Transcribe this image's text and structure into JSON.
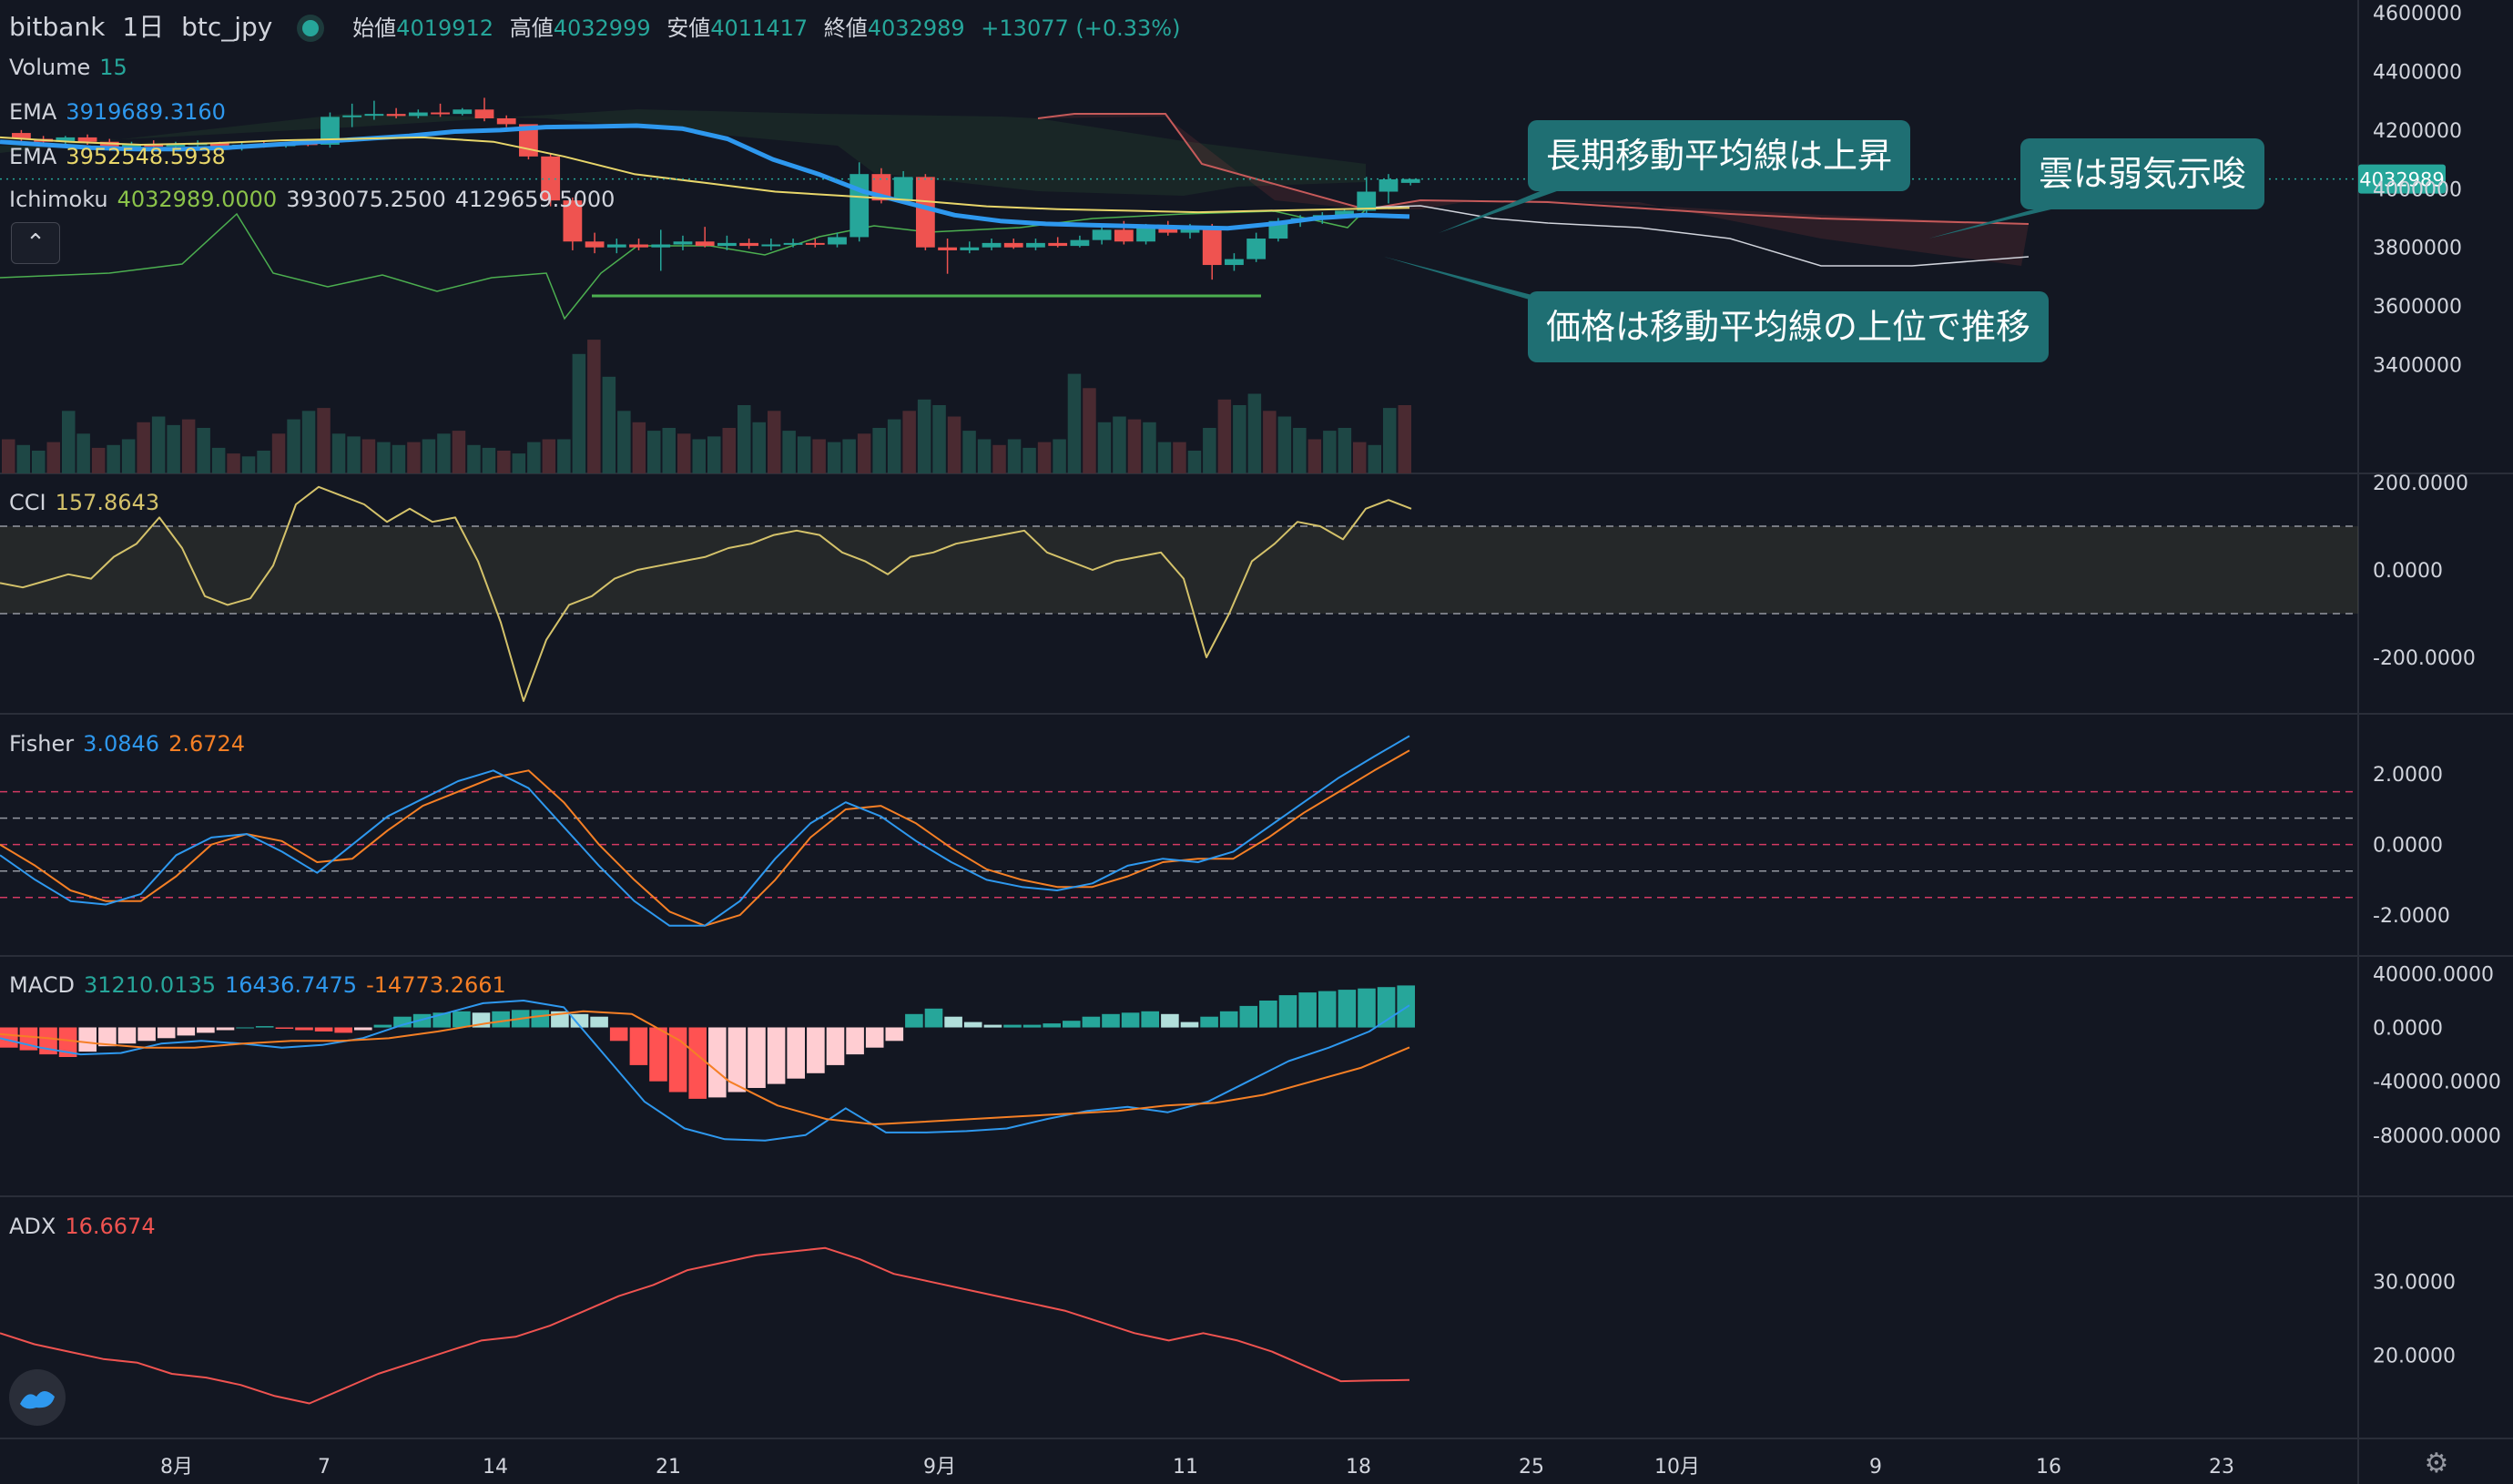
{
  "header": {
    "exchange": "bitbank",
    "interval": "1日",
    "symbol": "btc_jpy",
    "open_label": "始値",
    "open": "4019912",
    "high_label": "高値",
    "high": "4032999",
    "low_label": "安値",
    "low": "4011417",
    "close_label": "終値",
    "close": "4032989",
    "change": "+13077 (+0.33%)"
  },
  "legend": {
    "volume_label": "Volume",
    "volume_value": "15",
    "ema1_label": "EMA",
    "ema1_value": "3919689.3160",
    "ema2_label": "EMA",
    "ema2_value": "3952548.5938",
    "ichimoku_label": "Ichimoku",
    "ichimoku_v1": "4032989.0000",
    "ichimoku_v2": "3930075.2500",
    "ichimoku_v3": "4129659.5000"
  },
  "callouts": {
    "c1": "長期移動平均線は上昇",
    "c2": "雲は弱気示唆",
    "c3": "価格は移動平均線の上位で推移"
  },
  "price_tag": "4032989",
  "colors": {
    "background": "#131722",
    "up": "#26a69a",
    "down": "#ef5350",
    "ema1": "#2e98ee",
    "ema2": "#e8d66a",
    "cci": "#d4c26a",
    "fisher": "#2e98ee",
    "fisher_trigger": "#f57f25",
    "macd": "#2e98ee",
    "signal": "#f57f25",
    "adx": "#ef5350",
    "callout": "#1f6f73"
  },
  "icons": [
    "chevron-up-icon",
    "tradingview-logo-icon",
    "settings-gear-icon"
  ],
  "chart_data": [
    {
      "type": "candlestick",
      "name": "price",
      "ylim": [
        3200000,
        4600000
      ],
      "yticks": [
        "4600000",
        "4400000",
        "4200000",
        "4000000",
        "3800000",
        "3600000",
        "3400000"
      ],
      "ohlc": [
        [
          4190000,
          4200000,
          4150000,
          4170000
        ],
        [
          4170000,
          4180000,
          4150000,
          4160000
        ],
        [
          4160000,
          4180000,
          4140000,
          4175000
        ],
        [
          4175000,
          4185000,
          4150000,
          4160000
        ],
        [
          4160000,
          4170000,
          4130000,
          4140000
        ],
        [
          4140000,
          4160000,
          4130000,
          4150000
        ],
        [
          4150000,
          4165000,
          4140000,
          4145000
        ],
        [
          4145000,
          4160000,
          4135000,
          4150000
        ],
        [
          4150000,
          4165000,
          4140000,
          4155000
        ],
        [
          4155000,
          4160000,
          4130000,
          4140000
        ],
        [
          4140000,
          4160000,
          4130000,
          4150000
        ],
        [
          4150000,
          4160000,
          4140000,
          4145000
        ],
        [
          4145000,
          4160000,
          4140000,
          4155000
        ],
        [
          4155000,
          4170000,
          4145000,
          4150000
        ],
        [
          4150000,
          4260000,
          4140000,
          4245000
        ],
        [
          4245000,
          4290000,
          4210000,
          4250000
        ],
        [
          4250000,
          4300000,
          4235000,
          4255000
        ],
        [
          4255000,
          4275000,
          4240000,
          4248000
        ],
        [
          4248000,
          4270000,
          4240000,
          4260000
        ],
        [
          4260000,
          4290000,
          4245000,
          4255000
        ],
        [
          4255000,
          4275000,
          4250000,
          4270000
        ],
        [
          4270000,
          4310000,
          4230000,
          4240000
        ],
        [
          4240000,
          4250000,
          4210000,
          4220000
        ],
        [
          4220000,
          4215000,
          4100000,
          4110000
        ],
        [
          4110000,
          4120000,
          3940000,
          3960000
        ],
        [
          3960000,
          3970000,
          3790000,
          3820000
        ],
        [
          3820000,
          3850000,
          3780000,
          3800000
        ],
        [
          3800000,
          3830000,
          3780000,
          3810000
        ],
        [
          3810000,
          3830000,
          3790000,
          3800000
        ],
        [
          3800000,
          3860000,
          3720000,
          3810000
        ],
        [
          3810000,
          3840000,
          3790000,
          3820000
        ],
        [
          3820000,
          3870000,
          3800000,
          3805000
        ],
        [
          3805000,
          3840000,
          3790000,
          3815000
        ],
        [
          3815000,
          3830000,
          3795000,
          3805000
        ],
        [
          3805000,
          3830000,
          3790000,
          3810000
        ],
        [
          3810000,
          3830000,
          3800000,
          3815000
        ],
        [
          3815000,
          3830000,
          3800000,
          3810000
        ],
        [
          3810000,
          3850000,
          3800000,
          3835000
        ],
        [
          3835000,
          4090000,
          3820000,
          4050000
        ],
        [
          4050000,
          4070000,
          3950000,
          3960000
        ],
        [
          3960000,
          4060000,
          3950000,
          4040000
        ],
        [
          4040000,
          4050000,
          3790000,
          3800000
        ],
        [
          3800000,
          3830000,
          3710000,
          3790000
        ],
        [
          3790000,
          3820000,
          3780000,
          3800000
        ],
        [
          3800000,
          3830000,
          3790000,
          3815000
        ],
        [
          3815000,
          3830000,
          3795000,
          3800000
        ],
        [
          3800000,
          3830000,
          3790000,
          3815000
        ],
        [
          3815000,
          3835000,
          3800000,
          3805000
        ],
        [
          3805000,
          3840000,
          3800000,
          3825000
        ],
        [
          3825000,
          3880000,
          3810000,
          3860000
        ],
        [
          3860000,
          3890000,
          3810000,
          3820000
        ],
        [
          3820000,
          3880000,
          3810000,
          3865000
        ],
        [
          3865000,
          3890000,
          3840000,
          3850000
        ],
        [
          3850000,
          3880000,
          3830000,
          3870000
        ],
        [
          3870000,
          3880000,
          3690000,
          3740000
        ],
        [
          3740000,
          3780000,
          3720000,
          3760000
        ],
        [
          3760000,
          3850000,
          3750000,
          3830000
        ],
        [
          3830000,
          3900000,
          3820000,
          3890000
        ],
        [
          3890000,
          3910000,
          3870000,
          3900000
        ],
        [
          3900000,
          3920000,
          3880000,
          3910000
        ],
        [
          3910000,
          3930000,
          3900000,
          3925000
        ],
        [
          3925000,
          4040000,
          3910000,
          3990000
        ],
        [
          3990000,
          4050000,
          3950000,
          4032000
        ],
        [
          4019912,
          4032999,
          4011417,
          4032989
        ]
      ],
      "ema_long": [
        4160000,
        4150000,
        4140000,
        4135000,
        4135000,
        4140000,
        4150000,
        4160000,
        4170000,
        4180000,
        4195000,
        4200000,
        4210000,
        4212000,
        4215000,
        4205000,
        4170000,
        4100000,
        4050000,
        3990000,
        3950000,
        3910000,
        3890000,
        3880000,
        3876000,
        3872000,
        3868000,
        3865000,
        3880000,
        3900000,
        3910000,
        3905000
      ],
      "ema_short": [
        4175000,
        4160000,
        4150000,
        4155000,
        4165000,
        4170000,
        4175000,
        4160000,
        4110000,
        4050000,
        4020000,
        3990000,
        3975000,
        3960000,
        3940000,
        3930000,
        3925000,
        3920000,
        3925000,
        3930000,
        3935000
      ],
      "volume_ylim": [
        0,
        400
      ],
      "volume": [
        60,
        50,
        40,
        55,
        110,
        70,
        45,
        50,
        60,
        90,
        100,
        85,
        95,
        80,
        45,
        35,
        30,
        40,
        70,
        95,
        110,
        115,
        70,
        65,
        60,
        55,
        50,
        55,
        60,
        70,
        75,
        50,
        45,
        40,
        35,
        55,
        60,
        60,
        210,
        235,
        170,
        110,
        90,
        75,
        80,
        70,
        60,
        65,
        80,
        120,
        90,
        110,
        75,
        65,
        60,
        55,
        60,
        70,
        80,
        95,
        110,
        130,
        120,
        100,
        75,
        60,
        50,
        60,
        45,
        55,
        60,
        175,
        150,
        90,
        100,
        95,
        90,
        55,
        55,
        40,
        80,
        130,
        120,
        140,
        110,
        100,
        80,
        60,
        75,
        80,
        55,
        50,
        115,
        120
      ]
    },
    {
      "type": "line",
      "name": "CCI",
      "value_label": "157.8643",
      "ylim": [
        -300,
        200
      ],
      "yticks": [
        "200.0000",
        "0.0000",
        "-200.0000"
      ],
      "bands": [
        100,
        -100
      ],
      "values": [
        -30,
        -40,
        -25,
        -10,
        -20,
        30,
        60,
        120,
        50,
        -60,
        -80,
        -65,
        10,
        150,
        190,
        170,
        150,
        110,
        140,
        110,
        120,
        20,
        -120,
        -300,
        -160,
        -80,
        -60,
        -20,
        0,
        10,
        20,
        30,
        50,
        60,
        80,
        90,
        80,
        40,
        20,
        -10,
        30,
        40,
        60,
        70,
        80,
        90,
        40,
        20,
        0,
        20,
        30,
        40,
        -20,
        -200,
        -100,
        20,
        60,
        110,
        100,
        70,
        140,
        160,
        140
      ]
    },
    {
      "type": "line",
      "name": "Fisher",
      "values_label": [
        "3.0846",
        "2.6724"
      ],
      "ylim": [
        -2.9,
        3.4
      ],
      "yticks": [
        "2.0000",
        "0.0000",
        "-2.0000"
      ],
      "levels": [
        1.5,
        0.75,
        0,
        -0.75,
        -1.5
      ],
      "fisher": [
        -0.3,
        -1.0,
        -1.6,
        -1.7,
        -1.4,
        -0.3,
        0.2,
        0.3,
        -0.2,
        -0.8,
        0.0,
        0.8,
        1.3,
        1.8,
        2.1,
        1.6,
        0.5,
        -0.6,
        -1.6,
        -2.3,
        -2.3,
        -1.6,
        -0.4,
        0.6,
        1.2,
        0.8,
        0.1,
        -0.5,
        -1.0,
        -1.2,
        -1.3,
        -1.1,
        -0.6,
        -0.4,
        -0.5,
        -0.2,
        0.5,
        1.2,
        1.9,
        2.5,
        3.08
      ],
      "trigger": [
        0.0,
        -0.6,
        -1.3,
        -1.6,
        -1.6,
        -0.9,
        0.0,
        0.3,
        0.1,
        -0.5,
        -0.4,
        0.4,
        1.1,
        1.5,
        1.9,
        2.1,
        1.2,
        0.0,
        -1.0,
        -1.9,
        -2.3,
        -2.0,
        -1.0,
        0.2,
        1.0,
        1.1,
        0.6,
        -0.1,
        -0.7,
        -1.0,
        -1.2,
        -1.2,
        -0.9,
        -0.5,
        -0.4,
        -0.4,
        0.2,
        0.9,
        1.5,
        2.1,
        2.67
      ]
    },
    {
      "type": "bar+line",
      "name": "MACD",
      "values_label": [
        "31210.0135",
        "16436.7475",
        "-14773.2661"
      ],
      "ylim": [
        -120000,
        45000
      ],
      "yticks": [
        "40000.0000",
        "0.0000",
        "-40000.0000",
        "-80000.0000"
      ],
      "histogram": [
        -15000,
        -17000,
        -20000,
        -22000,
        -18000,
        -14000,
        -12000,
        -10000,
        -8000,
        -6000,
        -4000,
        -2000,
        0,
        1000,
        -1000,
        -2000,
        -3000,
        -4000,
        -2000,
        2000,
        8000,
        10000,
        11000,
        12000,
        11000,
        12000,
        13000,
        13000,
        12000,
        10000,
        8000,
        -10000,
        -28000,
        -40000,
        -48000,
        -53000,
        -52000,
        -48000,
        -45000,
        -42000,
        -38000,
        -34000,
        -28000,
        -20000,
        -15000,
        -10000,
        10000,
        14000,
        8000,
        4000,
        2000,
        2000,
        2000,
        3000,
        5000,
        8000,
        10000,
        11000,
        12000,
        10000,
        4000,
        8000,
        12000,
        16000,
        20000,
        24000,
        26000,
        27000,
        28000,
        29000,
        30000,
        31210
      ],
      "macd": [
        -8000,
        -15000,
        -20000,
        -19000,
        -12000,
        -10000,
        -12000,
        -15000,
        -13000,
        -8000,
        2000,
        10000,
        18000,
        20000,
        15000,
        -20000,
        -55000,
        -75000,
        -83000,
        -84000,
        -80000,
        -60000,
        -78000,
        -78000,
        -77000,
        -75000,
        -68000,
        -62000,
        -59000,
        -63000,
        -55000,
        -40000,
        -25000,
        -15000,
        -3000,
        16437
      ],
      "signal": [
        -5000,
        -8000,
        -12000,
        -15000,
        -15000,
        -12000,
        -10000,
        -10000,
        -8000,
        -3000,
        3000,
        8000,
        12000,
        10000,
        -10000,
        -40000,
        -58000,
        -68000,
        -72000,
        -70000,
        -68000,
        -66000,
        -64000,
        -62000,
        -58000,
        -56000,
        -50000,
        -40000,
        -30000,
        -14773
      ]
    },
    {
      "type": "line",
      "name": "ADX",
      "value_label": "16.6674",
      "ylim": [
        10,
        40
      ],
      "yticks": [
        "30.0000",
        "20.0000"
      ],
      "values": [
        23,
        21.5,
        20.5,
        19.5,
        19,
        17.5,
        17,
        16,
        14.5,
        13.5,
        15.5,
        17.5,
        19,
        20.5,
        22,
        22.5,
        24,
        26,
        28,
        29.5,
        31.5,
        32.5,
        33.5,
        34,
        34.5,
        33,
        31,
        30,
        29,
        28,
        27,
        26,
        24.5,
        23,
        22,
        23,
        22,
        20.5,
        18.5,
        16.5,
        16.6,
        16.67
      ]
    }
  ],
  "x_axis": {
    "ticks": [
      "8月",
      "7",
      "14",
      "21",
      "9月",
      "11",
      "18",
      "25",
      "10月",
      "9",
      "16",
      "23"
    ]
  }
}
